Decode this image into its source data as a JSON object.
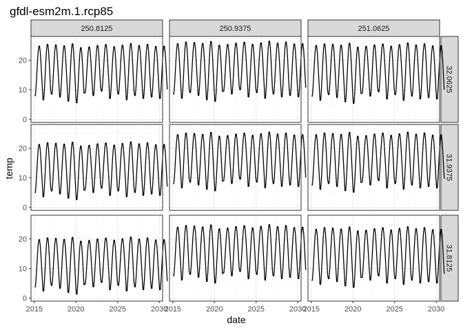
{
  "chart_data": {
    "type": "line",
    "title": "gfdl-esm2m.1.rcp85",
    "xlabel": "date",
    "ylabel": "temp",
    "x_range": [
      "2015-01-01",
      "2030-12-01"
    ],
    "xlim": [
      2014.6,
      2030.4
    ],
    "ylim": [
      -1,
      28
    ],
    "x_ticks": [
      2015,
      2020,
      2025,
      2030
    ],
    "x_tick_labels": [
      "2015",
      "2020",
      "2025",
      "2030"
    ],
    "y_ticks": [
      0,
      10,
      20
    ],
    "y_tick_labels": [
      "0",
      "10",
      "20"
    ],
    "grid": true,
    "facet_columns": [
      "250.8125",
      "250.9375",
      "251.0625"
    ],
    "facet_rows": [
      "32.0625",
      "31.9375",
      "31.8125"
    ],
    "panels": [
      {
        "col": "250.8125",
        "row": "32.0625",
        "summer_peak": 25.0,
        "winter_min": 7.0
      },
      {
        "col": "250.9375",
        "row": "32.0625",
        "summer_peak": 25.8,
        "winter_min": 7.5
      },
      {
        "col": "251.0625",
        "row": "32.0625",
        "summer_peak": 25.2,
        "winter_min": 6.8
      },
      {
        "col": "250.8125",
        "row": "31.9375",
        "summer_peak": 21.5,
        "winter_min": 4.0
      },
      {
        "col": "250.9375",
        "row": "31.9375",
        "summer_peak": 24.8,
        "winter_min": 7.0
      },
      {
        "col": "251.0625",
        "row": "31.9375",
        "summer_peak": 24.8,
        "winter_min": 6.5
      },
      {
        "col": "250.8125",
        "row": "31.8125",
        "summer_peak": 20.0,
        "winter_min": 2.8
      },
      {
        "col": "250.9375",
        "row": "31.8125",
        "summer_peak": 24.2,
        "winter_min": 6.5
      },
      {
        "col": "251.0625",
        "row": "31.8125",
        "summer_peak": 23.5,
        "winter_min": 5.0
      }
    ],
    "year_peak_offsets": [
      0.0,
      0.6,
      0.4,
      0.1,
      0.8,
      -0.5,
      -0.3,
      0.2,
      0.5,
      -0.2,
      0.3,
      0.9,
      0.2,
      0.6,
      -0.1,
      0.0
    ],
    "year_min_offsets": [
      0.5,
      -1.0,
      1.0,
      0.0,
      -1.5,
      -2.0,
      1.5,
      0.5,
      2.0,
      -0.5,
      1.0,
      -1.0,
      0.5,
      -0.5,
      0.0,
      -0.5
    ],
    "colors": {
      "line": "#000000",
      "strip": "#d9d9d9",
      "panel_border": "#333333",
      "grid": "#ebebeb"
    }
  }
}
